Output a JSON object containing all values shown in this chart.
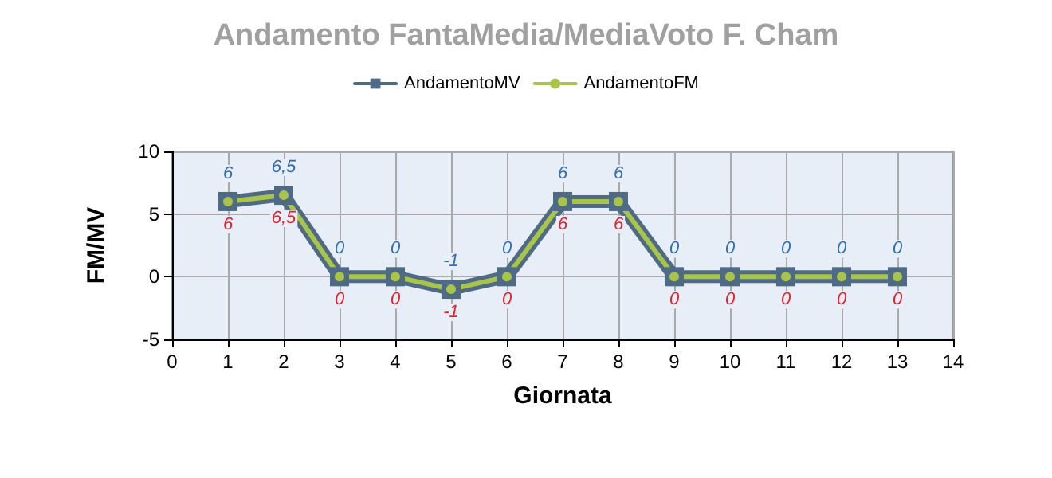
{
  "chart_data": {
    "type": "line",
    "title": "Andamento FantaMedia/MediaVoto F. Cham",
    "xlabel": "Giornata",
    "ylabel": "FM/MV",
    "x": [
      1,
      2,
      3,
      4,
      5,
      6,
      7,
      8,
      9,
      10,
      11,
      12,
      13
    ],
    "series": [
      {
        "name": "AndamentoMV",
        "color": "#4f6a85",
        "marker": "square",
        "values": [
          6,
          6.5,
          0,
          0,
          -1,
          0,
          6,
          6,
          0,
          0,
          0,
          0,
          0
        ],
        "value_labels": [
          "6",
          "6,5",
          "0",
          "0",
          "-1",
          "0",
          "6",
          "6",
          "0",
          "0",
          "0",
          "0",
          "0"
        ]
      },
      {
        "name": "AndamentoFM",
        "color": "#a9c44a",
        "marker": "circle",
        "values": [
          6,
          6.5,
          0,
          0,
          -1,
          0,
          6,
          6,
          0,
          0,
          0,
          0,
          0
        ],
        "value_labels": [
          "6",
          "6,5",
          "0",
          "0",
          "-1",
          "0",
          "6",
          "6",
          "0",
          "0",
          "0",
          "0",
          "0"
        ]
      }
    ],
    "xlim": [
      0,
      14
    ],
    "xticks": [
      0,
      1,
      2,
      3,
      4,
      5,
      6,
      7,
      8,
      9,
      10,
      11,
      12,
      13,
      14
    ],
    "ylim": [
      -5,
      10
    ],
    "yticks": [
      -5,
      0,
      5,
      10
    ],
    "grid": true,
    "legend": "top"
  }
}
